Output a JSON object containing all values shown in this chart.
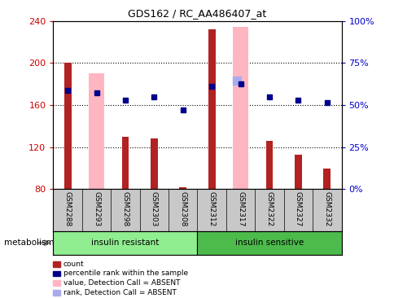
{
  "title": "GDS162 / RC_AA486407_at",
  "samples": [
    "GSM2288",
    "GSM2293",
    "GSM2298",
    "GSM2303",
    "GSM2308",
    "GSM2312",
    "GSM2317",
    "GSM2322",
    "GSM2327",
    "GSM2332"
  ],
  "groups": [
    "insulin resistant",
    "insulin sensitive"
  ],
  "group_split": 5,
  "ylim_left": [
    80,
    240
  ],
  "ylim_right": [
    0,
    100
  ],
  "yticks_left": [
    80,
    120,
    160,
    200,
    240
  ],
  "yticks_right": [
    0,
    25,
    50,
    75,
    100
  ],
  "ytick_labels_right": [
    "0%",
    "25%",
    "50%",
    "75%",
    "100%"
  ],
  "red_bars": [
    200,
    80,
    130,
    128,
    82,
    232,
    80,
    126,
    113,
    100
  ],
  "pink_bars": [
    null,
    190,
    null,
    null,
    null,
    null,
    234,
    null,
    null,
    null
  ],
  "blue_dots": [
    174,
    172,
    165,
    168,
    155,
    178,
    180,
    168,
    165,
    162
  ],
  "light_blue_dots": [
    null,
    null,
    null,
    null,
    null,
    null,
    183,
    null,
    null,
    null
  ],
  "colors": {
    "red_bar": "#B22222",
    "pink_bar": "#FFB6C1",
    "blue_dot": "#00008B",
    "light_blue_dot": "#AAAAEE",
    "tick_label_left": "#CC0000",
    "tick_label_right": "#0000CC",
    "axis_border": "#000000"
  },
  "legend": [
    {
      "label": "count",
      "color": "#B22222"
    },
    {
      "label": "percentile rank within the sample",
      "color": "#00008B"
    },
    {
      "label": "value, Detection Call = ABSENT",
      "color": "#FFB6C1"
    },
    {
      "label": "rank, Detection Call = ABSENT",
      "color": "#AAAAEE"
    }
  ]
}
